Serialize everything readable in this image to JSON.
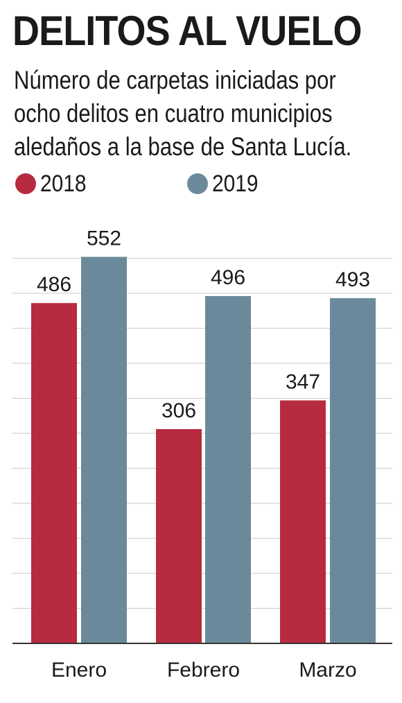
{
  "header": {
    "title": "DELITOS AL VUELO",
    "subtitle": "Número de carpetas iniciadas por ocho delitos en cuatro municipios aledaños a la base de Santa Lucía."
  },
  "legend": [
    {
      "label": "2018",
      "color": "#b72b40"
    },
    {
      "label": "2019",
      "color": "#6a8a9b"
    }
  ],
  "chart_data": {
    "type": "bar",
    "title": "DELITOS AL VUELO",
    "subtitle": "Número de carpetas iniciadas por ocho delitos en cuatro municipios aledaños a la base de Santa Lucía.",
    "categories": [
      "Enero",
      "Febrero",
      "Marzo"
    ],
    "series": [
      {
        "name": "2018",
        "values": [
          486,
          306,
          347
        ],
        "color": "#b72b40"
      },
      {
        "name": "2019",
        "values": [
          552,
          496,
          493
        ],
        "color": "#6a8a9b"
      }
    ],
    "ylim": [
      0,
      550
    ],
    "grid": true,
    "legend_position": "top-left",
    "data_labels": true
  }
}
